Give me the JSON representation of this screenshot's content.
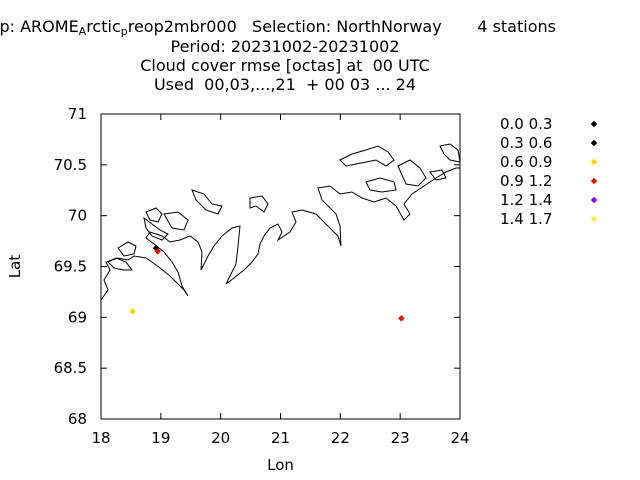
{
  "header": {
    "line1_prefix": "xp: AROME",
    "line1_sub1": "A",
    "line1_mid": "rctic",
    "line1_sub2": "p",
    "line1_suffix": "reop2mbr000   Selection: NorthNorway       4 stations",
    "line2": "Period: 20231002-20231002",
    "line3": "Cloud cover rmse [octas] at  00 UTC",
    "line4": "Used  00,03,...,21  + 00 03 ... 24"
  },
  "chart_data": {
    "type": "scatter",
    "title": "Cloud cover rmse [octas] at  00 UTC",
    "xlabel": "Lon",
    "ylabel": "Lat",
    "xlim": [
      18,
      24
    ],
    "ylim": [
      68,
      71
    ],
    "x_ticks": [
      "18",
      "19",
      "20",
      "21",
      "22",
      "23",
      "24"
    ],
    "y_ticks": [
      "68",
      "68.5",
      "69",
      "69.5",
      "70",
      "70.5",
      "71"
    ],
    "legend_position": "right",
    "legend": [
      {
        "label": "0.0 0.3",
        "color": "#000000"
      },
      {
        "label": "0.3 0.6",
        "color": "#000000"
      },
      {
        "label": "0.6 0.9",
        "color": "#ffd700"
      },
      {
        "label": "0.9 1.2",
        "color": "#dd1100"
      },
      {
        "label": "1.2 1.4",
        "color": "#8800ee"
      },
      {
        "label": "1.4 1.7",
        "color": "#ffee44"
      }
    ],
    "points": [
      {
        "lon": 18.92,
        "lat": 69.68,
        "color": "#000000"
      },
      {
        "lon": 18.95,
        "lat": 69.65,
        "color": "#dd1100"
      },
      {
        "lon": 18.53,
        "lat": 69.06,
        "color": "#ffd700"
      },
      {
        "lon": 23.02,
        "lat": 68.99,
        "color": "#dd1100"
      }
    ]
  }
}
